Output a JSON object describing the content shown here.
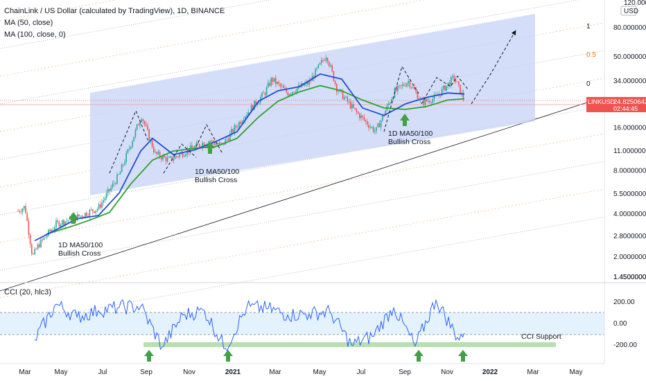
{
  "legend": {
    "title": "ChainLink / US Dollar (calculated by TradingView), 1D, BINANCE",
    "ma50": "MA (50, close)",
    "ma100": "MA (100, close, 0)",
    "cci": "CCI (20, hlc3)"
  },
  "currency_badge": "USD",
  "price_tag": {
    "symbol": "LINKUSD",
    "price": "24.8250642",
    "countdown": "02:44:45"
  },
  "fib_labels": [
    "1",
    "0.5",
    "0"
  ],
  "annotations": {
    "cross1": [
      "1D MA50/100",
      "Bullish Cross"
    ],
    "cross2": [
      "1D MA50/100",
      "Bullish Cross"
    ],
    "cross3": [
      "1D MA50/100",
      "Bullish Cross"
    ],
    "cci_support": "CCI Support"
  },
  "colors": {
    "ma50": "#1e4bd8",
    "ma100": "#2ca02c",
    "cci": "#2962ff",
    "channel": "#c6d3f7",
    "price_tag": "#ef5350",
    "arrow": "#43a047",
    "cci_band": "#e3f2fd",
    "cci_support": "#b7e0b0"
  },
  "chart_data": [
    {
      "type": "line",
      "title": "ChainLink / US Dollar (calculated by TradingView), 1D, BINANCE",
      "y_scale": "log",
      "y_ticks": [
        "120.0000000",
        "80.0000000",
        "50.0000000",
        "34.0000000",
        "24.0000000",
        "16.0000000",
        "11.0000000",
        "8.0000000",
        "5.5000000",
        "4.0000000",
        "2.8000000",
        "2.0000000",
        "1.4500000"
      ],
      "x_ticks": [
        "Mar",
        "May",
        "Jul",
        "Sep",
        "Nov",
        "2021",
        "Mar",
        "May",
        "Jul",
        "Sep",
        "Nov",
        "2022",
        "Mar",
        "May"
      ],
      "last_price": 24.8250642,
      "series": [
        {
          "name": "MA (50, close)",
          "color": "#1e4bd8",
          "x": [
            "2020-03-15",
            "2020-04-15",
            "2020-05-15",
            "2020-06-15",
            "2020-07-15",
            "2020-08-15",
            "2020-09-01",
            "2020-10-01",
            "2020-11-01",
            "2020-12-01",
            "2021-01-01",
            "2021-02-01",
            "2021-03-01",
            "2021-04-01",
            "2021-05-01",
            "2021-06-01",
            "2021-07-01",
            "2021-08-01",
            "2021-09-01",
            "2021-10-01",
            "2021-11-01",
            "2021-11-25"
          ],
          "values": [
            2.6,
            3.1,
            3.7,
            3.9,
            5.6,
            11.0,
            13.5,
            10.4,
            11.2,
            12.8,
            15.0,
            24.5,
            29.0,
            31.0,
            38.0,
            35.0,
            22.0,
            19.5,
            23.5,
            26.0,
            28.0,
            27.5
          ]
        },
        {
          "name": "MA (100, close, 0)",
          "color": "#2ca02c",
          "x": [
            "2020-04-01",
            "2020-05-01",
            "2020-06-01",
            "2020-07-01",
            "2020-08-01",
            "2020-09-01",
            "2020-10-01",
            "2020-11-01",
            "2020-12-01",
            "2021-01-01",
            "2021-02-01",
            "2021-03-01",
            "2021-04-01",
            "2021-05-01",
            "2021-06-01",
            "2021-07-01",
            "2021-08-01",
            "2021-09-01",
            "2021-10-01",
            "2021-11-01",
            "2021-11-25"
          ],
          "values": [
            2.9,
            3.2,
            3.6,
            4.1,
            6.5,
            9.5,
            11.0,
            11.5,
            11.8,
            13.5,
            19.0,
            24.5,
            28.5,
            31.5,
            29.0,
            25.0,
            22.0,
            21.5,
            22.5,
            25.0,
            25.5
          ]
        },
        {
          "name": "Price",
          "color": "#26a69a",
          "x": [
            "2020-02-20",
            "2020-03-01",
            "2020-03-12",
            "2020-03-20",
            "2020-04-15",
            "2020-05-15",
            "2020-06-15",
            "2020-07-15",
            "2020-08-16",
            "2020-09-05",
            "2020-09-25",
            "2020-10-20",
            "2020-11-20",
            "2020-12-10",
            "2021-01-10",
            "2021-02-10",
            "2021-02-20",
            "2021-03-15",
            "2021-04-15",
            "2021-05-10",
            "2021-05-25",
            "2021-06-20",
            "2021-07-20",
            "2021-08-15",
            "2021-09-05",
            "2021-09-25",
            "2021-10-15",
            "2021-11-10",
            "2021-11-25"
          ],
          "values": [
            4.2,
            4.5,
            2.0,
            2.4,
            3.4,
            3.8,
            4.4,
            7.5,
            19.5,
            10.5,
            9.5,
            11.0,
            13.0,
            12.0,
            19.0,
            28.0,
            35.0,
            28.0,
            33.0,
            52.0,
            30.0,
            21.0,
            15.0,
            28.0,
            34.0,
            24.0,
            26.0,
            36.0,
            24.8
          ]
        }
      ]
    },
    {
      "type": "line",
      "title": "CCI (20, hlc3)",
      "y_ticks": [
        "200.00",
        "0.00",
        "-200.00"
      ],
      "bands": [
        100,
        -100
      ],
      "support_level": -205,
      "series": [
        {
          "name": "CCI (20, hlc3)",
          "color": "#2962ff",
          "x": [
            "2020-03",
            "2020-04",
            "2020-05",
            "2020-06",
            "2020-07",
            "2020-08",
            "2020-09",
            "2020-10",
            "2020-11",
            "2020-12",
            "2021-01",
            "2021-02",
            "2021-03",
            "2021-04",
            "2021-05",
            "2021-06",
            "2021-07",
            "2021-08",
            "2021-09",
            "2021-10",
            "2021-11",
            "2021-11-25"
          ],
          "values": [
            -150,
            180,
            60,
            120,
            150,
            160,
            -220,
            80,
            120,
            -230,
            150,
            140,
            80,
            90,
            110,
            -200,
            -120,
            150,
            -210,
            220,
            -130,
            -90
          ]
        }
      ]
    }
  ]
}
